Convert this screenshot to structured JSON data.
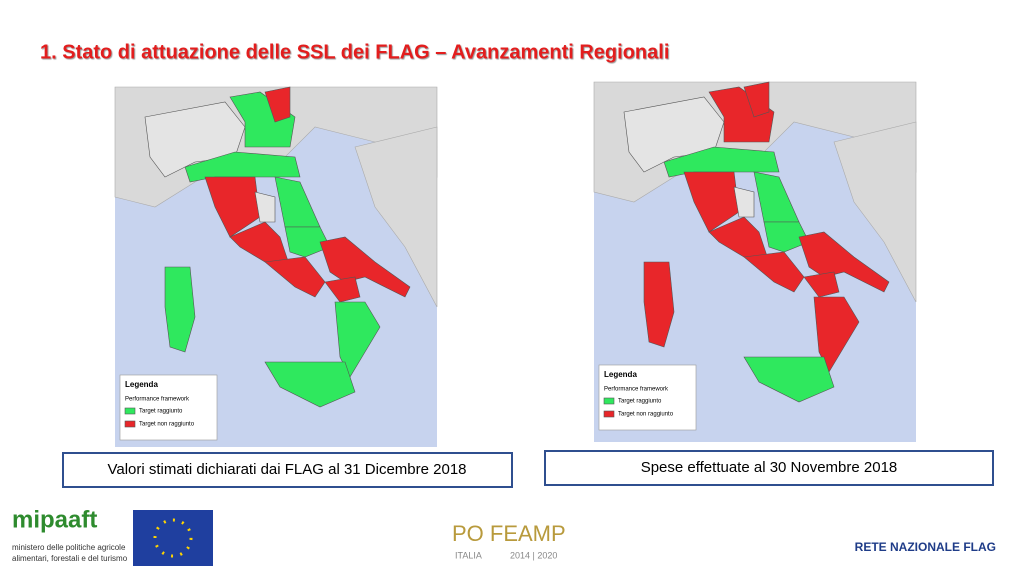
{
  "header": {
    "title": "1. Stato di attuazione delle SSL dei FLAG – Avanzamenti Regionali"
  },
  "maps": [
    {
      "legend": {
        "title": "Legenda",
        "subtitle": "Performance framework",
        "items": [
          "Target raggiunto",
          "Target non raggiunto"
        ]
      },
      "caption": "Valori stimati dichiarati dai FLAG al 31 Dicembre 2018"
    },
    {
      "legend": {
        "title": "Legenda",
        "subtitle": "Performance framework",
        "items": [
          "Target raggiunto",
          "Target non raggiunto"
        ]
      },
      "caption": "Spese effettuate al 30 Novembre 2018"
    }
  ],
  "footer": {
    "ministry": {
      "logo": "mipaaft",
      "line1": "ministero delle politiche agricole",
      "line2": "alimentari, forestali e del turismo"
    },
    "program": {
      "name": "PO FEAMP",
      "country": "ITALIA",
      "years": "2014 | 2020"
    },
    "network": "RETE NAZIONALE FLAG"
  }
}
